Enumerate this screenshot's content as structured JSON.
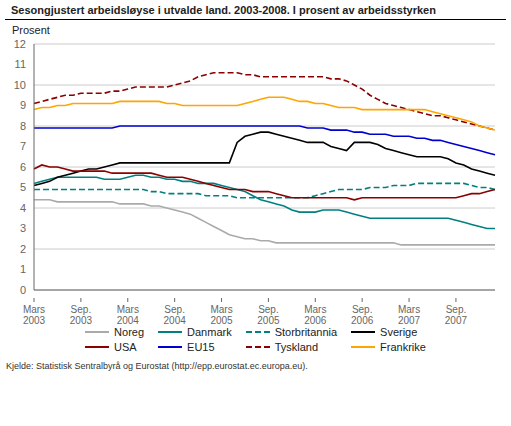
{
  "chart_data": {
    "type": "line",
    "title": "Sesongjustert arbeidsløyse i utvalde land. 2003-2008. I prosent av arbeidsstyrken",
    "y_label": "Prosent",
    "annotations": [
      "Kjelde: Statistisk Sentralbyrå og Eurostat (http://epp.eurostat.ec.europa.eu)."
    ],
    "categories": [
      "Mars\n2003",
      null,
      null,
      null,
      null,
      null,
      "Sep.\n2003",
      null,
      null,
      null,
      null,
      null,
      "Mars\n2004",
      null,
      null,
      null,
      null,
      null,
      "Sep.\n2004",
      null,
      null,
      null,
      null,
      null,
      "Mars\n2005",
      null,
      null,
      null,
      null,
      null,
      "Sep.\n2005",
      null,
      null,
      null,
      null,
      null,
      "Mars\n2006",
      null,
      null,
      null,
      null,
      null,
      "Sep.\n2006",
      null,
      null,
      null,
      null,
      null,
      "Mars\n2007",
      null,
      null,
      null,
      null,
      null,
      "Sep.\n2007",
      null,
      null,
      null,
      null,
      null
    ],
    "ylim": [
      0,
      12
    ],
    "yticks": [
      0,
      1,
      2,
      3,
      4,
      5,
      6,
      7,
      8,
      9,
      10,
      11,
      12
    ],
    "grid": "y",
    "legend": "bottom",
    "series": [
      {
        "name": "Noreg",
        "color": "#aaaaaa",
        "line_style": "solid",
        "values": [
          4.4,
          4.4,
          4.4,
          4.3,
          4.3,
          4.3,
          4.3,
          4.3,
          4.3,
          4.3,
          4.3,
          4.2,
          4.2,
          4.2,
          4.2,
          4.1,
          4.1,
          4.0,
          3.9,
          3.8,
          3.7,
          3.5,
          3.3,
          3.1,
          2.9,
          2.7,
          2.6,
          2.5,
          2.5,
          2.4,
          2.4,
          2.3,
          2.3,
          2.3,
          2.3,
          2.3,
          2.3,
          2.3,
          2.3,
          2.3,
          2.3,
          2.3,
          2.3,
          2.3,
          2.3,
          2.3,
          2.3,
          2.2,
          2.2,
          2.2,
          2.2,
          2.2,
          2.2,
          2.2,
          2.2,
          2.2,
          2.2,
          2.2,
          2.2,
          2.2
        ]
      },
      {
        "name": "Danmark",
        "color": "#008080",
        "line_style": "solid",
        "values": [
          5.2,
          5.3,
          5.4,
          5.5,
          5.5,
          5.5,
          5.5,
          5.5,
          5.5,
          5.4,
          5.4,
          5.4,
          5.5,
          5.6,
          5.6,
          5.5,
          5.5,
          5.4,
          5.4,
          5.3,
          5.3,
          5.2,
          5.2,
          5.2,
          5.1,
          5.0,
          4.9,
          4.8,
          4.6,
          4.4,
          4.3,
          4.2,
          4.1,
          3.9,
          3.8,
          3.8,
          3.8,
          3.9,
          3.9,
          3.9,
          3.8,
          3.7,
          3.6,
          3.5,
          3.5,
          3.5,
          3.5,
          3.5,
          3.5,
          3.5,
          3.5,
          3.5,
          3.5,
          3.5,
          3.4,
          3.3,
          3.2,
          3.1,
          3.0,
          3.0
        ]
      },
      {
        "name": "Storbritannia",
        "color": "#008080",
        "line_style": "dashed",
        "values": [
          4.9,
          4.9,
          4.9,
          4.9,
          4.9,
          4.9,
          4.9,
          4.9,
          4.9,
          4.9,
          4.9,
          4.9,
          4.9,
          4.9,
          4.9,
          4.8,
          4.8,
          4.7,
          4.7,
          4.7,
          4.7,
          4.7,
          4.6,
          4.6,
          4.6,
          4.6,
          4.5,
          4.5,
          4.5,
          4.5,
          4.5,
          4.5,
          4.5,
          4.5,
          4.5,
          4.5,
          4.6,
          4.7,
          4.8,
          4.9,
          4.9,
          4.9,
          4.9,
          5.0,
          5.0,
          5.0,
          5.1,
          5.1,
          5.1,
          5.2,
          5.2,
          5.2,
          5.2,
          5.2,
          5.2,
          5.2,
          5.1,
          5.0,
          5.0,
          4.9
        ]
      },
      {
        "name": "Sverige",
        "color": "#000000",
        "line_style": "solid",
        "values": [
          5.1,
          5.2,
          5.3,
          5.5,
          5.6,
          5.7,
          5.8,
          5.9,
          5.9,
          6.0,
          6.1,
          6.2,
          6.2,
          6.2,
          6.2,
          6.2,
          6.2,
          6.2,
          6.2,
          6.2,
          6.2,
          6.2,
          6.2,
          6.2,
          6.2,
          6.2,
          7.2,
          7.5,
          7.6,
          7.7,
          7.7,
          7.6,
          7.5,
          7.4,
          7.3,
          7.2,
          7.2,
          7.2,
          7.0,
          6.9,
          6.8,
          7.2,
          7.2,
          7.2,
          7.1,
          6.9,
          6.8,
          6.7,
          6.6,
          6.5,
          6.5,
          6.5,
          6.5,
          6.4,
          6.2,
          6.1,
          5.9,
          5.8,
          5.7,
          5.6
        ]
      },
      {
        "name": "USA",
        "color": "#8b0000",
        "line_style": "solid",
        "values": [
          5.9,
          6.1,
          6.0,
          6.0,
          5.9,
          5.8,
          5.8,
          5.8,
          5.8,
          5.8,
          5.7,
          5.7,
          5.7,
          5.7,
          5.7,
          5.7,
          5.6,
          5.5,
          5.5,
          5.5,
          5.4,
          5.3,
          5.2,
          5.1,
          5.0,
          4.9,
          4.9,
          4.9,
          4.8,
          4.8,
          4.8,
          4.7,
          4.6,
          4.5,
          4.5,
          4.5,
          4.5,
          4.5,
          4.5,
          4.5,
          4.5,
          4.4,
          4.5,
          4.5,
          4.5,
          4.5,
          4.5,
          4.5,
          4.5,
          4.5,
          4.5,
          4.5,
          4.5,
          4.5,
          4.5,
          4.6,
          4.7,
          4.7,
          4.8,
          4.9
        ]
      },
      {
        "name": "EU15",
        "color": "#0000cd",
        "line_style": "solid",
        "values": [
          7.9,
          7.9,
          7.9,
          7.9,
          7.9,
          7.9,
          7.9,
          7.9,
          7.9,
          7.9,
          7.9,
          8.0,
          8.0,
          8.0,
          8.0,
          8.0,
          8.0,
          8.0,
          8.0,
          8.0,
          8.0,
          8.0,
          8.0,
          8.0,
          8.0,
          8.0,
          8.0,
          8.0,
          8.0,
          8.0,
          8.0,
          8.0,
          8.0,
          8.0,
          8.0,
          7.9,
          7.9,
          7.9,
          7.8,
          7.8,
          7.8,
          7.7,
          7.7,
          7.6,
          7.6,
          7.6,
          7.5,
          7.5,
          7.5,
          7.4,
          7.4,
          7.3,
          7.3,
          7.2,
          7.1,
          7.0,
          6.9,
          6.8,
          6.7,
          6.6
        ]
      },
      {
        "name": "Tyskland",
        "color": "#8b0000",
        "line_style": "dashed",
        "values": [
          9.1,
          9.2,
          9.3,
          9.4,
          9.5,
          9.5,
          9.6,
          9.6,
          9.6,
          9.6,
          9.7,
          9.7,
          9.8,
          9.9,
          9.9,
          9.9,
          9.9,
          9.9,
          10.0,
          10.1,
          10.2,
          10.4,
          10.5,
          10.6,
          10.6,
          10.6,
          10.6,
          10.5,
          10.5,
          10.4,
          10.4,
          10.4,
          10.4,
          10.4,
          10.4,
          10.4,
          10.4,
          10.4,
          10.3,
          10.3,
          10.2,
          10.0,
          9.8,
          9.5,
          9.3,
          9.1,
          9.0,
          8.9,
          8.8,
          8.7,
          8.6,
          8.5,
          8.5,
          8.4,
          8.3,
          8.2,
          8.1,
          8.0,
          7.9,
          7.8
        ]
      },
      {
        "name": "Frankrike",
        "color": "#ffa500",
        "line_style": "solid",
        "values": [
          8.8,
          8.9,
          8.9,
          9.0,
          9.0,
          9.1,
          9.1,
          9.1,
          9.1,
          9.1,
          9.1,
          9.2,
          9.2,
          9.2,
          9.2,
          9.2,
          9.2,
          9.1,
          9.1,
          9.0,
          9.0,
          9.0,
          9.0,
          9.0,
          9.0,
          9.0,
          9.0,
          9.1,
          9.2,
          9.3,
          9.4,
          9.4,
          9.4,
          9.3,
          9.2,
          9.2,
          9.1,
          9.1,
          9.0,
          8.9,
          8.9,
          8.9,
          8.8,
          8.8,
          8.8,
          8.8,
          8.8,
          8.8,
          8.8,
          8.8,
          8.8,
          8.7,
          8.6,
          8.5,
          8.4,
          8.3,
          8.2,
          8.0,
          7.9,
          7.8
        ]
      }
    ]
  }
}
